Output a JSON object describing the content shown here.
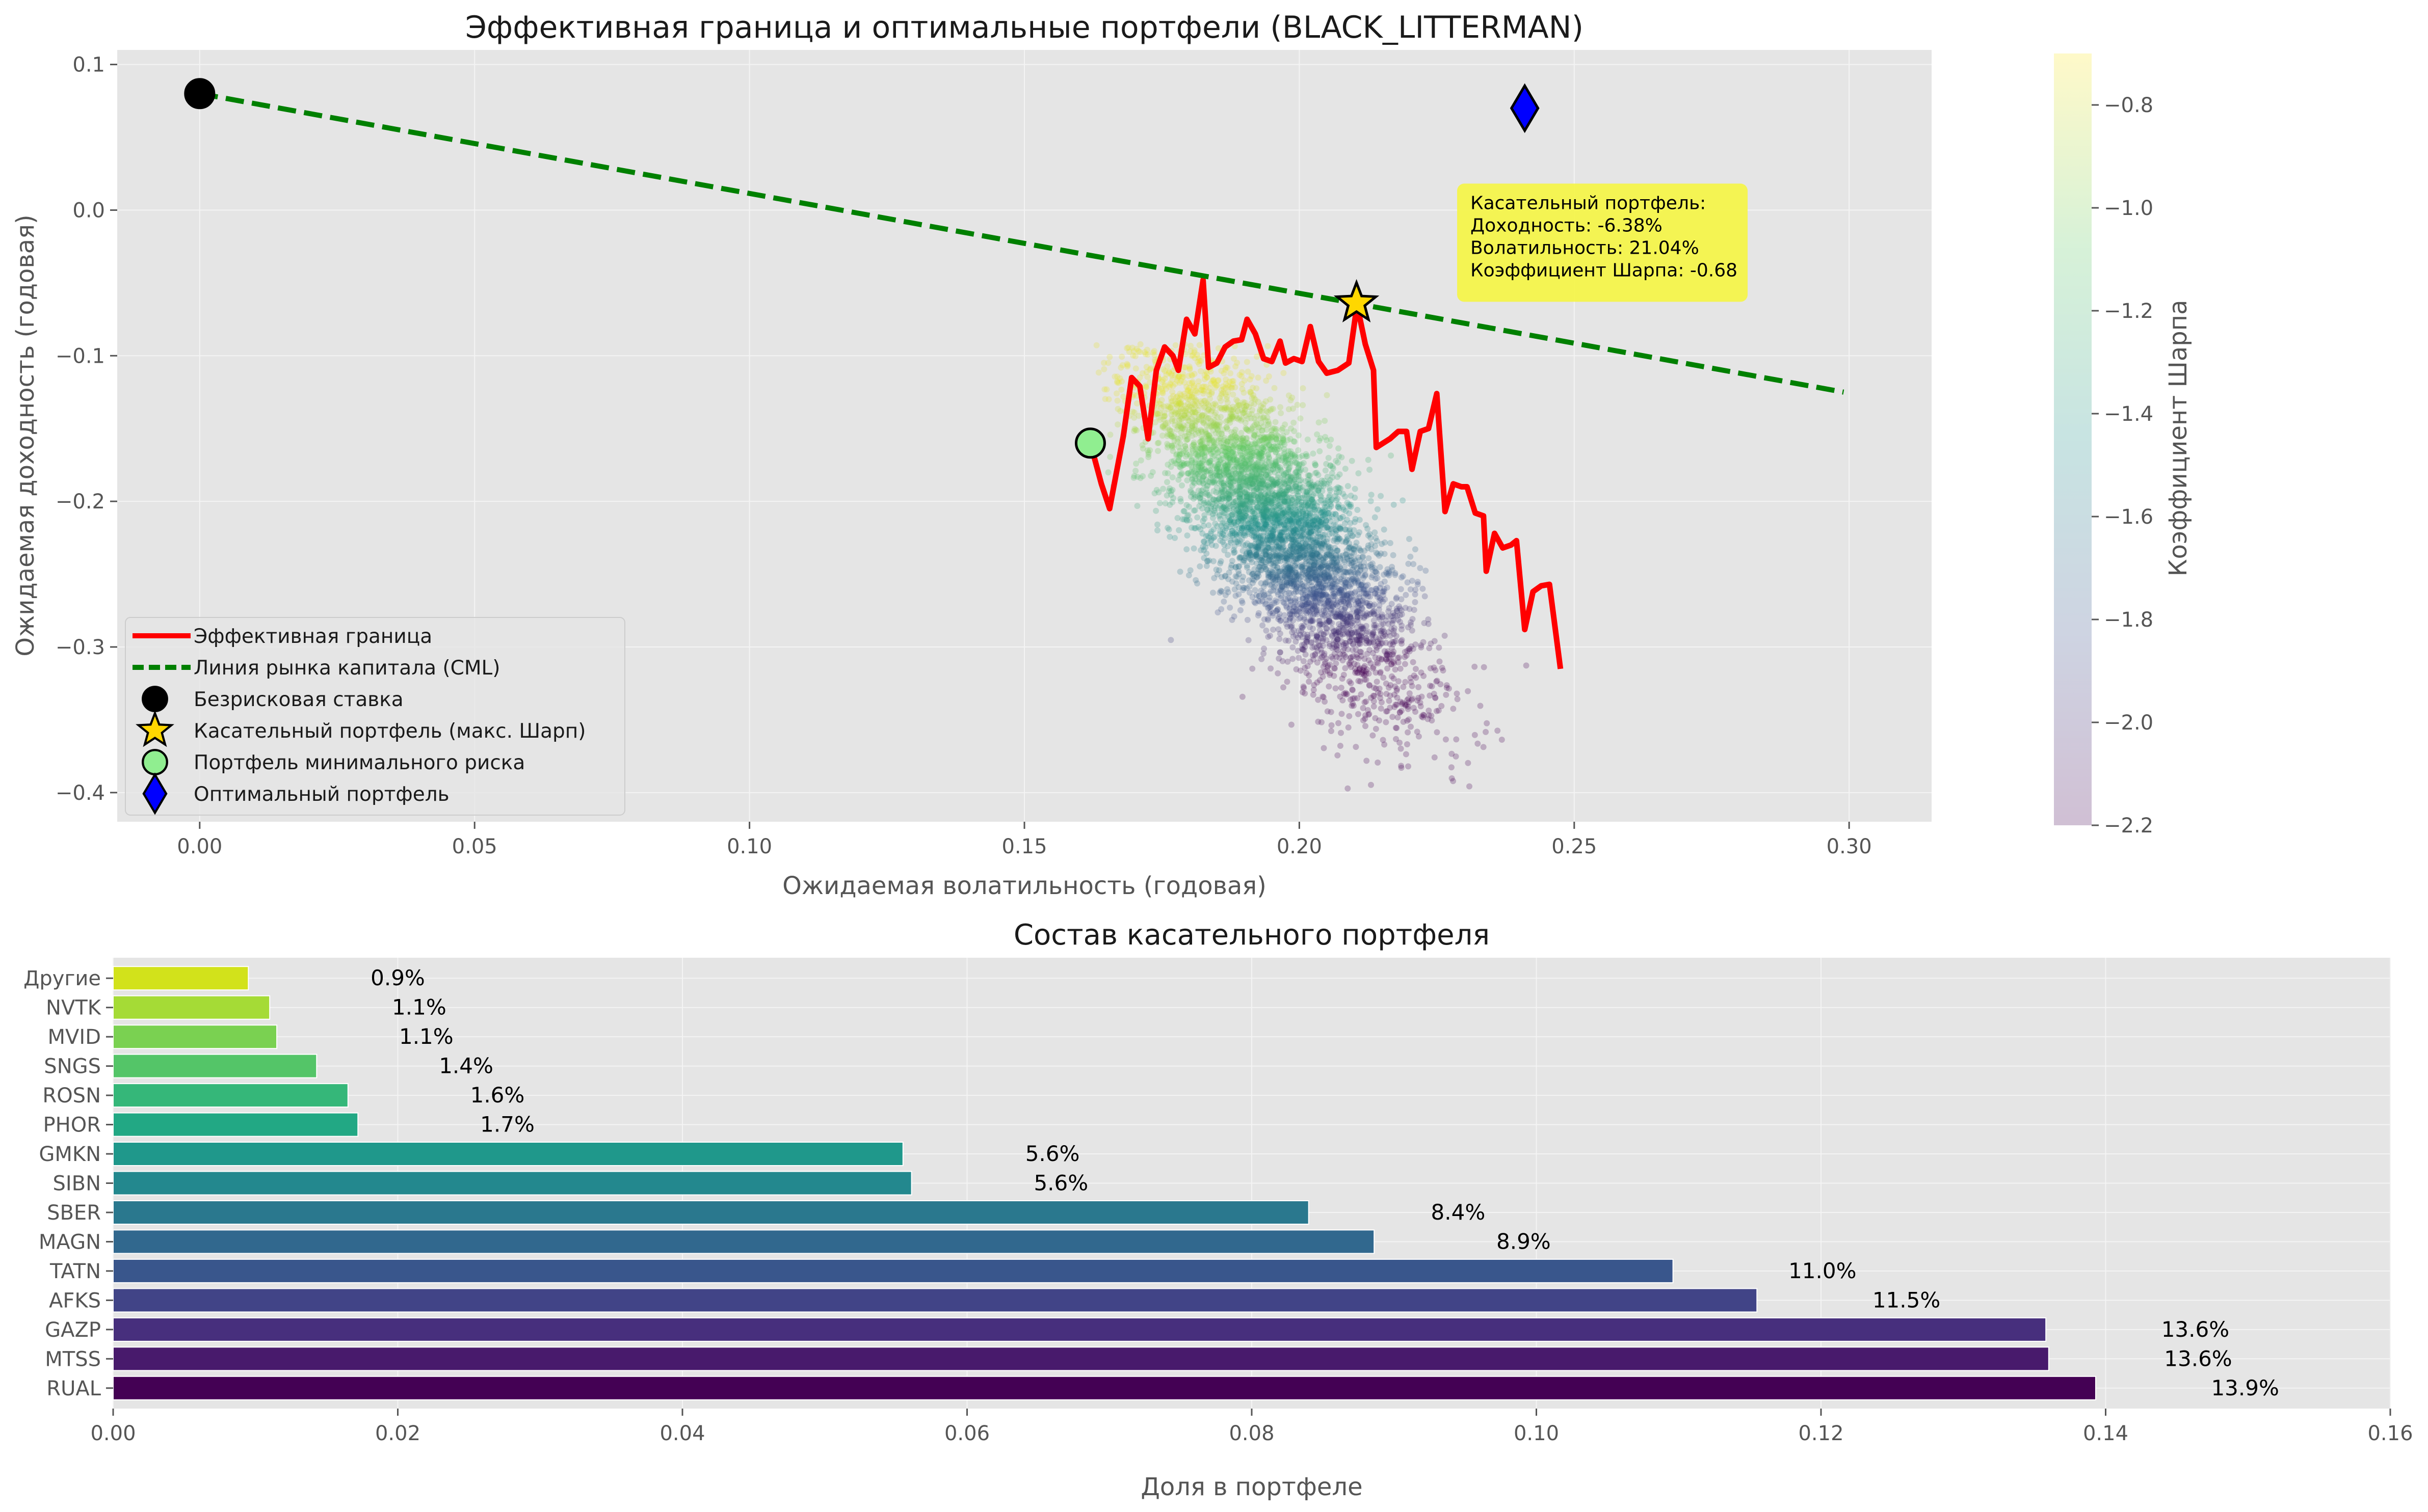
{
  "chart_data": [
    {
      "type": "scatter",
      "title": "Эффективная граница и оптимальные портфели (BLACK_LITTERMAN)",
      "xlabel": "Ожидаемая волатильность (годовая)",
      "ylabel": "Ожидаемая доходность (годовая)",
      "xlim": [
        -0.015,
        0.315
      ],
      "ylim": [
        -0.42,
        0.11
      ],
      "x_ticks": [
        "0.00",
        "0.05",
        "0.10",
        "0.15",
        "0.20",
        "0.25",
        "0.30"
      ],
      "y_ticks": [
        "0.1",
        "0.0",
        "−0.1",
        "−0.2",
        "−0.3",
        "−0.4"
      ],
      "grid": true,
      "legend_position": "lower-left",
      "colormap": "viridis",
      "colorbar": {
        "label": "Коэффициент Шарпа",
        "range": [
          -2.2,
          -0.7
        ],
        "ticks": [
          "−0.8",
          "−1.0",
          "−1.2",
          "−1.4",
          "−1.6",
          "−1.8",
          "−2.0",
          "−2.2"
        ]
      },
      "random_portfolios": {
        "count": 5000,
        "volatility_center": 0.196,
        "return_center": -0.215,
        "sharpe_range": [
          -2.2,
          -0.75
        ],
        "alpha": 0.25
      },
      "series": [
        {
          "name": "Эффективная граница",
          "color": "#ff0000",
          "points": [
            [
              0.162,
              -0.16
            ],
            [
              0.164,
              -0.188
            ],
            [
              0.1655,
              -0.205
            ],
            [
              0.168,
              -0.155
            ],
            [
              0.1695,
              -0.115
            ],
            [
              0.171,
              -0.121
            ],
            [
              0.1725,
              -0.157
            ],
            [
              0.174,
              -0.11
            ],
            [
              0.1755,
              -0.094
            ],
            [
              0.177,
              -0.1
            ],
            [
              0.178,
              -0.11
            ],
            [
              0.1795,
              -0.075
            ],
            [
              0.181,
              -0.085
            ],
            [
              0.1825,
              -0.048
            ],
            [
              0.1835,
              -0.108
            ],
            [
              0.185,
              -0.105
            ],
            [
              0.1865,
              -0.094
            ],
            [
              0.188,
              -0.09
            ],
            [
              0.1895,
              -0.089
            ],
            [
              0.1905,
              -0.075
            ],
            [
              0.192,
              -0.085
            ],
            [
              0.1935,
              -0.102
            ],
            [
              0.195,
              -0.104
            ],
            [
              0.1965,
              -0.09
            ],
            [
              0.1975,
              -0.105
            ],
            [
              0.199,
              -0.102
            ],
            [
              0.2005,
              -0.104
            ],
            [
              0.202,
              -0.08
            ],
            [
              0.2035,
              -0.104
            ],
            [
              0.205,
              -0.112
            ],
            [
              0.207,
              -0.11
            ],
            [
              0.209,
              -0.105
            ],
            [
              0.2105,
              -0.065
            ],
            [
              0.212,
              -0.092
            ],
            [
              0.2135,
              -0.11
            ],
            [
              0.214,
              -0.163
            ],
            [
              0.2165,
              -0.157
            ],
            [
              0.218,
              -0.152
            ],
            [
              0.2195,
              -0.152
            ],
            [
              0.2205,
              -0.178
            ],
            [
              0.222,
              -0.152
            ],
            [
              0.2235,
              -0.15
            ],
            [
              0.225,
              -0.126
            ],
            [
              0.2265,
              -0.207
            ],
            [
              0.228,
              -0.188
            ],
            [
              0.2295,
              -0.19
            ],
            [
              0.2305,
              -0.19
            ],
            [
              0.232,
              -0.208
            ],
            [
              0.2335,
              -0.21
            ],
            [
              0.234,
              -0.248
            ],
            [
              0.2355,
              -0.222
            ],
            [
              0.237,
              -0.232
            ],
            [
              0.2385,
              -0.23
            ],
            [
              0.2395,
              -0.227
            ],
            [
              0.241,
              -0.288
            ],
            [
              0.2425,
              -0.262
            ],
            [
              0.244,
              -0.258
            ],
            [
              0.2455,
              -0.257
            ],
            [
              0.2475,
              -0.315
            ]
          ]
        },
        {
          "name": "Линия рынка капитала (CML)",
          "color": "#008000",
          "points": [
            [
              0.0,
              0.08
            ],
            [
              0.299,
              -0.125
            ]
          ]
        }
      ],
      "markers": [
        {
          "name": "Безрисковая ставка",
          "shape": "circle",
          "color": "#000000",
          "x": 0.0,
          "y": 0.08
        },
        {
          "name": "Касательный портфель (макс. Шарп)",
          "shape": "star",
          "color": "#ffd700",
          "x": 0.2104,
          "y": -0.0638
        },
        {
          "name": "Портфель минимального риска",
          "shape": "circle",
          "color": "#90ee90",
          "x": 0.162,
          "y": -0.16
        },
        {
          "name": "Оптимальный портфель",
          "shape": "diamond",
          "color": "#0000ff",
          "x": 0.241,
          "y": 0.07
        }
      ],
      "annotation": {
        "lines": [
          "Касательный портфель:",
          "Доходность: -6.38%",
          "Волатильность: 21.04%",
          "Коэффициент Шарпа: -0.68"
        ],
        "background": "#f5f542",
        "anchor_x": 0.23,
        "anchor_y": 0.0
      }
    },
    {
      "type": "bar",
      "orientation": "horizontal",
      "title": "Состав касательного портфеля",
      "xlabel": "Доля в портфеле",
      "ylabel": "",
      "xlim": [
        0,
        0.16
      ],
      "x_ticks": [
        "0.00",
        "0.02",
        "0.04",
        "0.06",
        "0.08",
        "0.10",
        "0.12",
        "0.14",
        "0.16"
      ],
      "grid": true,
      "colormap": "viridis",
      "categories": [
        "RUAL",
        "MTSS",
        "GAZP",
        "AFKS",
        "TATN",
        "MAGN",
        "SBER",
        "SIBN",
        "GMKN",
        "PHOR",
        "ROSN",
        "SNGS",
        "MVID",
        "NVTK",
        "Другие"
      ],
      "values": [
        0.1393,
        0.136,
        0.1358,
        0.1155,
        0.1096,
        0.0886,
        0.084,
        0.0561,
        0.0555,
        0.0172,
        0.0165,
        0.0143,
        0.0115,
        0.011,
        0.0095
      ],
      "labels": [
        "13.9%",
        "13.6%",
        "13.6%",
        "11.5%",
        "11.0%",
        "8.9%",
        "8.4%",
        "5.6%",
        "5.6%",
        "1.7%",
        "1.6%",
        "1.4%",
        "1.1%",
        "1.1%",
        "0.9%"
      ],
      "colors": [
        "#440154",
        "#481a6c",
        "#472f7d",
        "#414487",
        "#39568c",
        "#31688e",
        "#2a788e",
        "#23888e",
        "#1f988b",
        "#22a884",
        "#35b779",
        "#54c568",
        "#7ad151",
        "#a5db36",
        "#d2e21b"
      ]
    }
  ]
}
